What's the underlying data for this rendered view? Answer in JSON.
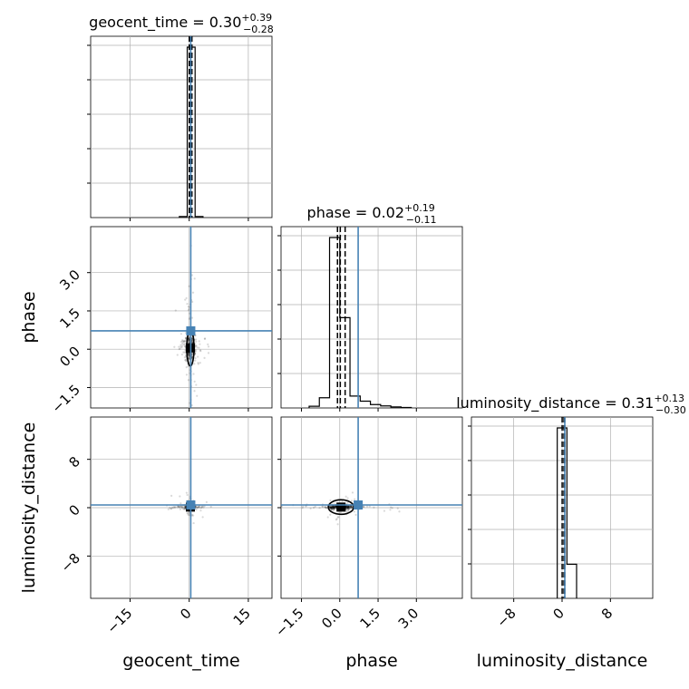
{
  "chart_data": {
    "type": "corner",
    "parameters": [
      "geocent_time",
      "phase",
      "luminosity_distance"
    ],
    "titles": [
      {
        "param": "geocent_time",
        "text": "geocent_time = 0.30",
        "sup": "+0.39",
        "sub": "−0.28"
      },
      {
        "param": "phase",
        "text": "phase = 0.02",
        "sup": "+0.19",
        "sub": "−0.11"
      },
      {
        "param": "luminosity_distance",
        "text": "luminosity_distance = 0.31",
        "sup": "+0.13",
        "sub": "−0.30"
      }
    ],
    "truths": {
      "geocent_time": 0.4,
      "phase": 0.72,
      "luminosity_distance": 0.45
    },
    "quantiles": {
      "geocent_time": [
        0.02,
        0.3,
        0.69
      ],
      "phase": [
        -0.09,
        0.02,
        0.21
      ],
      "luminosity_distance": [
        0.01,
        0.31,
        0.44
      ]
    },
    "ranges": {
      "geocent_time": [
        -25,
        21
      ],
      "phase": [
        -2.3,
        4.8
      ],
      "luminosity_distance": [
        -15,
        15
      ]
    },
    "ticks": {
      "geocent_time": {
        "values": [
          -15,
          0,
          15
        ],
        "labels": [
          "−15",
          "0",
          "15"
        ]
      },
      "phase": {
        "values": [
          -1.5,
          0.0,
          1.5,
          3.0
        ],
        "labels": [
          "−1.5",
          "0.0",
          "1.5",
          "3.0"
        ]
      },
      "luminosity_distance": {
        "values": [
          -8,
          0,
          8
        ],
        "labels": [
          "−8",
          "0",
          "8"
        ]
      }
    },
    "histograms": {
      "geocent_time": {
        "edges": [
          -2.5,
          -0.5,
          1.5,
          3.5
        ],
        "counts": [
          0.006,
          1.0,
          0.006
        ]
      },
      "phase": {
        "edges": [
          -1.2,
          -0.8,
          -0.4,
          0.0,
          0.4,
          0.8,
          1.2,
          1.6,
          2.0,
          2.4,
          2.8
        ],
        "counts": [
          0.01,
          0.06,
          1.0,
          0.53,
          0.07,
          0.04,
          0.02,
          0.012,
          0.006,
          0.003
        ]
      },
      "luminosity_distance": {
        "edges": [
          -0.8,
          0.8,
          2.4
        ],
        "counts": [
          1.0,
          0.2
        ]
      }
    },
    "grid": true,
    "colors": {
      "truth": "#4682b4",
      "hist": "#000000",
      "samples": "#000000",
      "grid": "#b0b0b0"
    }
  }
}
